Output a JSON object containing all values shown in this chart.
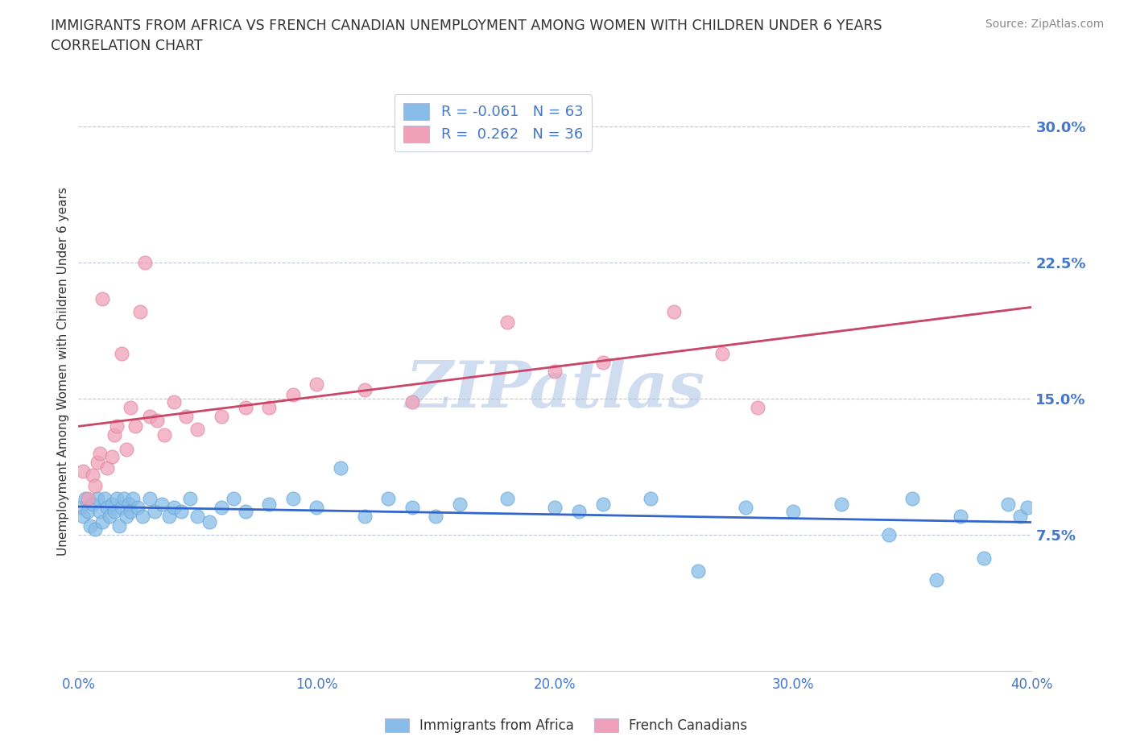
{
  "title_line1": "IMMIGRANTS FROM AFRICA VS FRENCH CANADIAN UNEMPLOYMENT AMONG WOMEN WITH CHILDREN UNDER 6 YEARS",
  "title_line2": "CORRELATION CHART",
  "source": "Source: ZipAtlas.com",
  "ylabel": "Unemployment Among Women with Children Under 6 years",
  "xlim": [
    0.0,
    0.4
  ],
  "ylim": [
    0.0,
    0.33
  ],
  "xticks": [
    0.0,
    0.1,
    0.2,
    0.3,
    0.4
  ],
  "yticks": [
    0.075,
    0.15,
    0.225,
    0.3
  ],
  "xticklabels": [
    "0.0%",
    "10.0%",
    "20.0%",
    "30.0%",
    "40.0%"
  ],
  "yticklabels": [
    "7.5%",
    "15.0%",
    "22.5%",
    "30.0%"
  ],
  "grid_color": "#b0b8d0",
  "background_color": "#ffffff",
  "series1_color": "#87bde8",
  "series2_color": "#f0a0b8",
  "series1_edge": "#6aa8d8",
  "series2_edge": "#e088a0",
  "series1_line_color": "#3366cc",
  "series2_line_color": "#cc4466",
  "series1_label": "Immigrants from Africa",
  "series2_label": "French Canadians",
  "series1_R": "-0.061",
  "series1_N": "63",
  "series2_R": "0.262",
  "series2_N": "36",
  "legend_R_color": "#4477cc",
  "legend_N_color": "#4477cc",
  "legend_label_color": "#333333",
  "title_color": "#333333",
  "tick_color": "#4477cc",
  "source_color": "#888888",
  "watermark": "ZIPatlas",
  "watermark_color": "#d0ddf0",
  "series1_x": [
    0.001,
    0.002,
    0.003,
    0.004,
    0.005,
    0.006,
    0.007,
    0.008,
    0.009,
    0.01,
    0.011,
    0.012,
    0.013,
    0.014,
    0.015,
    0.016,
    0.017,
    0.018,
    0.019,
    0.02,
    0.021,
    0.022,
    0.023,
    0.025,
    0.027,
    0.03,
    0.032,
    0.035,
    0.038,
    0.04,
    0.043,
    0.047,
    0.05,
    0.055,
    0.06,
    0.065,
    0.07,
    0.08,
    0.09,
    0.1,
    0.11,
    0.12,
    0.13,
    0.14,
    0.15,
    0.16,
    0.18,
    0.2,
    0.21,
    0.22,
    0.24,
    0.26,
    0.28,
    0.3,
    0.32,
    0.34,
    0.35,
    0.36,
    0.37,
    0.38,
    0.39,
    0.395,
    0.398
  ],
  "series1_y": [
    0.09,
    0.085,
    0.095,
    0.088,
    0.08,
    0.092,
    0.078,
    0.095,
    0.088,
    0.082,
    0.095,
    0.09,
    0.085,
    0.092,
    0.088,
    0.095,
    0.08,
    0.09,
    0.095,
    0.085,
    0.092,
    0.088,
    0.095,
    0.09,
    0.085,
    0.095,
    0.088,
    0.092,
    0.085,
    0.09,
    0.088,
    0.095,
    0.085,
    0.082,
    0.09,
    0.095,
    0.088,
    0.092,
    0.095,
    0.09,
    0.112,
    0.085,
    0.095,
    0.09,
    0.085,
    0.092,
    0.095,
    0.09,
    0.088,
    0.092,
    0.095,
    0.055,
    0.09,
    0.088,
    0.092,
    0.075,
    0.095,
    0.05,
    0.085,
    0.062,
    0.092,
    0.085,
    0.09
  ],
  "series2_x": [
    0.002,
    0.004,
    0.006,
    0.007,
    0.008,
    0.009,
    0.01,
    0.012,
    0.014,
    0.015,
    0.016,
    0.018,
    0.02,
    0.022,
    0.024,
    0.026,
    0.028,
    0.03,
    0.033,
    0.036,
    0.04,
    0.045,
    0.05,
    0.06,
    0.07,
    0.08,
    0.09,
    0.1,
    0.12,
    0.14,
    0.18,
    0.2,
    0.22,
    0.25,
    0.27,
    0.285
  ],
  "series2_y": [
    0.11,
    0.095,
    0.108,
    0.102,
    0.115,
    0.12,
    0.205,
    0.112,
    0.118,
    0.13,
    0.135,
    0.175,
    0.122,
    0.145,
    0.135,
    0.198,
    0.225,
    0.14,
    0.138,
    0.13,
    0.148,
    0.14,
    0.133,
    0.14,
    0.145,
    0.145,
    0.152,
    0.158,
    0.155,
    0.148,
    0.192,
    0.165,
    0.17,
    0.198,
    0.175,
    0.145
  ]
}
